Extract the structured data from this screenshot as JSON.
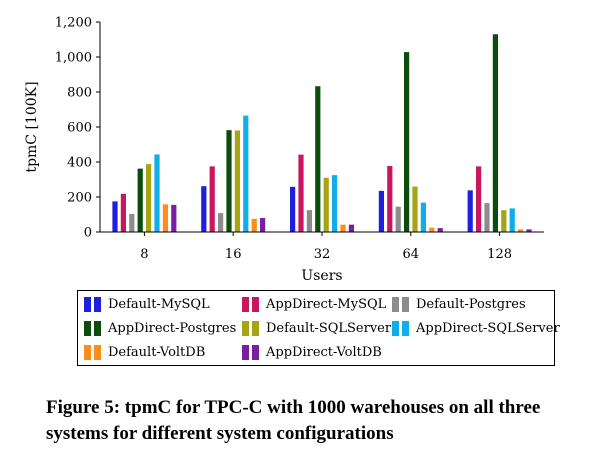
{
  "chart_data": {
    "type": "bar",
    "categories": [
      "8",
      "16",
      "32",
      "64",
      "128"
    ],
    "xlabel": "Users",
    "ylabel": "tpmC [100K]",
    "ylim": [
      0,
      1200
    ],
    "yticks": [
      "0",
      "200",
      "400",
      "600",
      "800",
      "1,000",
      "1,200"
    ],
    "ytick_values": [
      0,
      200,
      400,
      600,
      800,
      1000,
      1200
    ],
    "grid": false,
    "legend_placement": "bottom",
    "series": [
      {
        "name": "Default-MySQL",
        "color": "#1f1fe0",
        "values": [
          175,
          262,
          258,
          235,
          238
        ]
      },
      {
        "name": "AppDirect-MySQL",
        "color": "#c8175e",
        "values": [
          218,
          375,
          442,
          377,
          375
        ]
      },
      {
        "name": "Default-Postgres",
        "color": "#8c8c8c",
        "values": [
          103,
          108,
          125,
          145,
          165
        ]
      },
      {
        "name": "AppDirect-Postgres",
        "color": "#0c4d0c",
        "values": [
          362,
          582,
          833,
          1028,
          1130
        ]
      },
      {
        "name": "Default-SQLServer",
        "color": "#a5a514",
        "values": [
          388,
          580,
          310,
          260,
          125
        ]
      },
      {
        "name": "AppDirect-SQLServer",
        "color": "#10aee8",
        "values": [
          443,
          665,
          325,
          168,
          135
        ]
      },
      {
        "name": "Default-VoltDB",
        "color": "#ff8c1a",
        "values": [
          158,
          75,
          42,
          25,
          15
        ]
      },
      {
        "name": "AppDirect-VoltDB",
        "color": "#7b1fa2",
        "values": [
          155,
          80,
          42,
          22,
          15
        ]
      }
    ]
  },
  "caption": "Figure 5: tpmC for TPC-C with 1000 warehouses on all three systems for different system configurations"
}
